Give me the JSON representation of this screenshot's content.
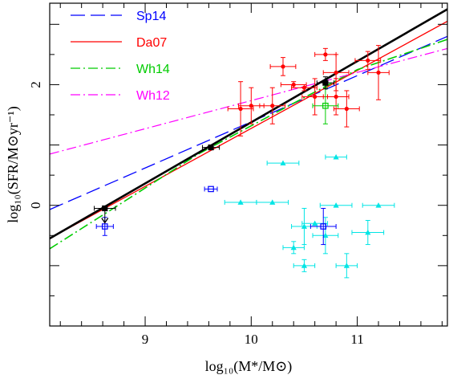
{
  "chart_data": {
    "type": "scatter",
    "xlabel": "log₁₀(M*/M⊙)",
    "ylabel": "log₁₀(SFR/M⊙yr⁻¹)",
    "xlim": [
      8.1,
      11.85
    ],
    "ylim": [
      -2.0,
      3.35
    ],
    "x_ticks": [
      9,
      10,
      11
    ],
    "y_ticks": [
      0,
      2
    ],
    "grid": false,
    "legend_position": "top-left",
    "legend": [
      {
        "name": "Sp14",
        "color": "#0000ff",
        "style": "dashed"
      },
      {
        "name": "Da07",
        "color": "#ff0000",
        "style": "solid"
      },
      {
        "name": "Wh14",
        "color": "#00cc00",
        "style": "dashdot"
      },
      {
        "name": "Wh12",
        "color": "#ff00ff",
        "style": "dashdot"
      }
    ],
    "lines": [
      {
        "name": "Sp14",
        "color": "#0000ff",
        "dash": "18,7",
        "width": 1.3,
        "points": [
          [
            8.1,
            -0.07
          ],
          [
            11.85,
            2.8
          ]
        ]
      },
      {
        "name": "Da07",
        "color": "#ff0000",
        "dash": "",
        "width": 1.3,
        "points": [
          [
            8.1,
            -0.55
          ],
          [
            11.85,
            3.05
          ]
        ]
      },
      {
        "name": "Wh14",
        "color": "#00cc00",
        "dash": "12,4,2,4",
        "width": 1.6,
        "points": [
          [
            8.1,
            -0.72
          ],
          [
            8.7,
            -0.05
          ],
          [
            9.5,
            0.85
          ],
          [
            10.3,
            1.6
          ],
          [
            11.0,
            2.25
          ],
          [
            11.85,
            2.75
          ]
        ]
      },
      {
        "name": "Wh12",
        "color": "#ff00ff",
        "dash": "12,4,2,4",
        "width": 1.2,
        "points": [
          [
            8.1,
            0.85
          ],
          [
            11.85,
            2.6
          ]
        ]
      },
      {
        "name": "fit",
        "color": "#000000",
        "dash": "",
        "width": 2.6,
        "points": [
          [
            8.1,
            -0.55
          ],
          [
            11.85,
            3.25
          ]
        ]
      }
    ],
    "series": [
      {
        "name": "red_circles",
        "color": "#ff0000",
        "marker": "circle",
        "points": [
          {
            "x": 9.9,
            "y": 1.6,
            "xerr": 0.12,
            "yerr": 0.45
          },
          {
            "x": 10.0,
            "y": 1.65,
            "xerr": 0.12,
            "yerr": 0.3
          },
          {
            "x": 10.2,
            "y": 1.65,
            "xerr": 0.12,
            "yerr": 0.3
          },
          {
            "x": 10.3,
            "y": 2.3,
            "xerr": 0.12,
            "yerr": 0.15
          },
          {
            "x": 10.4,
            "y": 2.0,
            "xerr": 0.12,
            "yerr": 0.05
          },
          {
            "x": 10.5,
            "y": 1.95,
            "xerr": 0.12,
            "yerr": 0.05
          },
          {
            "x": 10.6,
            "y": 1.8,
            "xerr": 0.12,
            "yerr": 0.3
          },
          {
            "x": 10.7,
            "y": 2.5,
            "xerr": 0.1,
            "yerr": 0.1
          },
          {
            "x": 10.8,
            "y": 2.2,
            "xerr": 0.12,
            "yerr": 0.3
          },
          {
            "x": 10.8,
            "y": 1.8,
            "xerr": 0.12,
            "yerr": 0.3
          },
          {
            "x": 10.9,
            "y": 1.6,
            "xerr": 0.12,
            "yerr": 0.3
          },
          {
            "x": 11.1,
            "y": 2.4,
            "xerr": 0.12,
            "yerr": 0.15
          },
          {
            "x": 11.2,
            "y": 2.2,
            "xerr": 0.1,
            "yerr": 0.45
          }
        ]
      },
      {
        "name": "cyan_triangles",
        "color": "#00e5e5",
        "marker": "triangle",
        "points": [
          {
            "x": 9.9,
            "y": 0.05,
            "xerr": 0.15,
            "yerr": 0
          },
          {
            "x": 10.2,
            "y": 0.05,
            "xerr": 0.15,
            "yerr": 0
          },
          {
            "x": 10.3,
            "y": 0.7,
            "xerr": 0.15,
            "yerr": 0
          },
          {
            "x": 10.8,
            "y": 0.8,
            "xerr": 0.1,
            "yerr": 0
          },
          {
            "x": 10.8,
            "y": 0.0,
            "xerr": 0.15,
            "yerr": 0
          },
          {
            "x": 11.2,
            "y": 0.0,
            "xerr": 0.15,
            "yerr": 0
          },
          {
            "x": 10.4,
            "y": -0.7,
            "xerr": 0.1,
            "yerr": 0.1
          },
          {
            "x": 10.5,
            "y": -1.0,
            "xerr": 0.1,
            "yerr": 0.1
          },
          {
            "x": 10.5,
            "y": -0.35,
            "xerr": 0.12,
            "yerr": 0.3
          },
          {
            "x": 10.6,
            "y": -0.3,
            "xerr": 0.12,
            "yerr": 0
          },
          {
            "x": 10.7,
            "y": -0.5,
            "xerr": 0.12,
            "yerr": 0.3
          },
          {
            "x": 10.9,
            "y": -1.0,
            "xerr": 0.1,
            "yerr": 0.2
          },
          {
            "x": 11.1,
            "y": -0.45,
            "xerr": 0.15,
            "yerr": 0.2
          }
        ]
      },
      {
        "name": "blue_open_squares",
        "color": "#0000ff",
        "marker": "square-open",
        "points": [
          {
            "x": 8.62,
            "y": -0.35,
            "xerr": 0.08,
            "yerr": 0.15
          },
          {
            "x": 9.62,
            "y": 0.27,
            "xerr": 0.06,
            "yerr": 0
          },
          {
            "x": 10.68,
            "y": -0.35,
            "xerr": 0.12,
            "yerr": 0.3
          }
        ]
      },
      {
        "name": "green_open_square",
        "color": "#00cc00",
        "marker": "square-open",
        "points": [
          {
            "x": 10.7,
            "y": 1.65,
            "xerr": 0.12,
            "yerr": 0.3
          }
        ]
      },
      {
        "name": "black_filled_squares",
        "color": "#000000",
        "marker": "square",
        "points": [
          {
            "x": 8.62,
            "y": -0.05,
            "xerr": 0.1,
            "yerr": 0,
            "arrow_down": true
          },
          {
            "x": 9.62,
            "y": 0.96,
            "xerr": 0.08,
            "yerr": 0
          },
          {
            "x": 10.7,
            "y": 2.03,
            "xerr": 0.08,
            "yerr": 0.1
          }
        ]
      }
    ]
  }
}
